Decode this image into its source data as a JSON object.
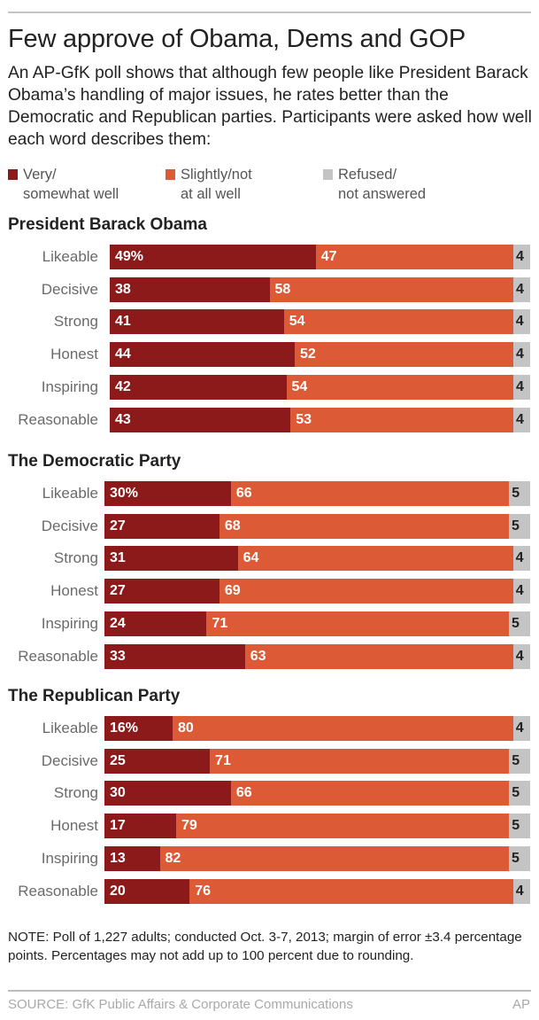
{
  "header": {
    "title": "Few approve of Obama, Dems and GOP",
    "subtitle": "An AP-GfK poll shows that although few people like President Barack Obama’s handling of major issues, he rates better than the Democratic and Republican parties. Participants were asked how well each word describes them:"
  },
  "colors": {
    "very": "#8d1a1b",
    "slightly": "#dc5a35",
    "refused": "#c4c4c4"
  },
  "chart_data": {
    "type": "bar",
    "orientation": "horizontal",
    "stacked": true,
    "title": "Few approve of Obama, Dems and GOP",
    "unit": "%",
    "legend": [
      {
        "key": "very",
        "label": "Very/\nsomewhat well"
      },
      {
        "key": "slightly",
        "label": "Slightly/not\nat all well"
      },
      {
        "key": "refused",
        "label": "Refused/\nnot answered"
      }
    ],
    "legend_position": "top",
    "xlim": [
      0,
      100
    ],
    "grid": false,
    "panels": [
      {
        "title": "President Barack Obama",
        "categories": [
          "Likeable",
          "Decisive",
          "Strong",
          "Honest",
          "Inspiring",
          "Reasonable"
        ],
        "series": [
          {
            "name": "Very/somewhat well",
            "values": [
              49,
              38,
              41,
              44,
              42,
              43
            ]
          },
          {
            "name": "Slightly/not at all well",
            "values": [
              47,
              58,
              54,
              52,
              54,
              53
            ]
          },
          {
            "name": "Refused/not answered",
            "values": [
              4,
              4,
              4,
              4,
              4,
              4
            ]
          }
        ]
      },
      {
        "title": "The Democratic Party",
        "categories": [
          "Likeable",
          "Decisive",
          "Strong",
          "Honest",
          "Inspiring",
          "Reasonable"
        ],
        "series": [
          {
            "name": "Very/somewhat well",
            "values": [
              30,
              27,
              31,
              27,
              24,
              33
            ]
          },
          {
            "name": "Slightly/not at all well",
            "values": [
              66,
              68,
              64,
              69,
              71,
              63
            ]
          },
          {
            "name": "Refused/not answered",
            "values": [
              5,
              5,
              4,
              4,
              5,
              4
            ]
          }
        ]
      },
      {
        "title": "The Republican Party",
        "categories": [
          "Likeable",
          "Decisive",
          "Strong",
          "Honest",
          "Inspiring",
          "Reasonable"
        ],
        "series": [
          {
            "name": "Very/somewhat well",
            "values": [
              16,
              25,
              30,
              17,
              13,
              20
            ]
          },
          {
            "name": "Slightly/not at all well",
            "values": [
              80,
              71,
              66,
              79,
              82,
              76
            ]
          },
          {
            "name": "Refused/not answered",
            "values": [
              4,
              5,
              5,
              5,
              5,
              4
            ]
          }
        ]
      }
    ],
    "first_value_suffix": "%"
  },
  "footer": {
    "note": "NOTE: Poll of 1,227 adults; conducted Oct. 3-7, 2013; margin of error ±3.4 percentage points. Percentages may not add up to 100 percent due to rounding.",
    "source": "SOURCE: GfK Public Affairs & Corporate Communications",
    "credit": "AP"
  }
}
